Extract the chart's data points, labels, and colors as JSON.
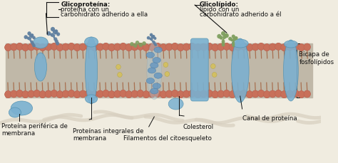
{
  "bg_color": "#f0ece0",
  "membrane_color": "#c8705a",
  "membrane_color2": "#b86050",
  "tail_color": "#a87050",
  "protein_color": "#7ab0d0",
  "protein_edge": "#5090b0",
  "cholesterol_color": "#d4c060",
  "glyco_blue": "#6080a0",
  "glyco_green": "#80a060",
  "filament_color": "#d8d0c0",
  "line_color": "#111111",
  "bg_membrane": "#c8c0b0",
  "labels": {
    "glicoproteina": "Glicoproteína: proteína con un\ncarbohidrato adherido a ella",
    "glicolipido": "Glicolípido: lípido con un\ncarbohidrato adherido a él",
    "proteina_periferica": "Proteína periférica de\nmembrana",
    "proteinas_integrales": "Proteínas integrales de\nmembrana",
    "filamentos": "Filamentos del citoesqueleto",
    "colesterol": "Colesterol",
    "canal": "Canal de proteína",
    "bicapa": "Bicapa de\nfosfolípidos"
  },
  "figsize": [
    4.74,
    2.3
  ],
  "dpi": 100
}
